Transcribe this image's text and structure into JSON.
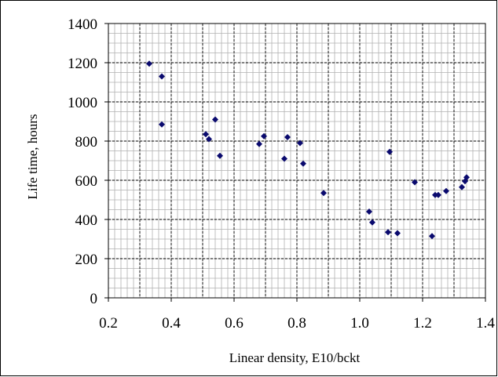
{
  "chart_data": {
    "type": "scatter",
    "title": "",
    "xlabel": "Linear density, E10/bckt",
    "ylabel": "Life time, hours",
    "xlim": [
      0.2,
      1.4
    ],
    "ylim": [
      0,
      1400
    ],
    "x_ticks": [
      "0.2",
      "0.4",
      "0.6",
      "0.8",
      "1.0",
      "1.2",
      "1.4"
    ],
    "y_ticks": [
      "0",
      "200",
      "400",
      "600",
      "800",
      "1000",
      "1200",
      "1400"
    ],
    "x_major_step": 0.1,
    "y_major_step": 200,
    "x_minor_step": 0.02,
    "y_minor_step": 50,
    "grid": true,
    "legend": "none",
    "marker": "diamond",
    "colors": {
      "marker": "#0a0a6e",
      "major_grid": "#000000",
      "minor_grid": "#b0b0b0"
    },
    "series": [
      {
        "points": [
          {
            "x": 0.33,
            "y": 1195
          },
          {
            "x": 0.37,
            "y": 1130
          },
          {
            "x": 0.37,
            "y": 885
          },
          {
            "x": 0.51,
            "y": 835
          },
          {
            "x": 0.52,
            "y": 810
          },
          {
            "x": 0.54,
            "y": 910
          },
          {
            "x": 0.555,
            "y": 725
          },
          {
            "x": 0.68,
            "y": 785
          },
          {
            "x": 0.695,
            "y": 825
          },
          {
            "x": 0.76,
            "y": 710
          },
          {
            "x": 0.77,
            "y": 820
          },
          {
            "x": 0.81,
            "y": 790
          },
          {
            "x": 0.82,
            "y": 685
          },
          {
            "x": 0.885,
            "y": 535
          },
          {
            "x": 1.03,
            "y": 440
          },
          {
            "x": 1.04,
            "y": 385
          },
          {
            "x": 1.09,
            "y": 335
          },
          {
            "x": 1.095,
            "y": 745
          },
          {
            "x": 1.12,
            "y": 330
          },
          {
            "x": 1.175,
            "y": 590
          },
          {
            "x": 1.23,
            "y": 315
          },
          {
            "x": 1.24,
            "y": 525
          },
          {
            "x": 1.25,
            "y": 525
          },
          {
            "x": 1.275,
            "y": 545
          },
          {
            "x": 1.325,
            "y": 565
          },
          {
            "x": 1.335,
            "y": 595
          },
          {
            "x": 1.34,
            "y": 615
          }
        ]
      }
    ]
  }
}
